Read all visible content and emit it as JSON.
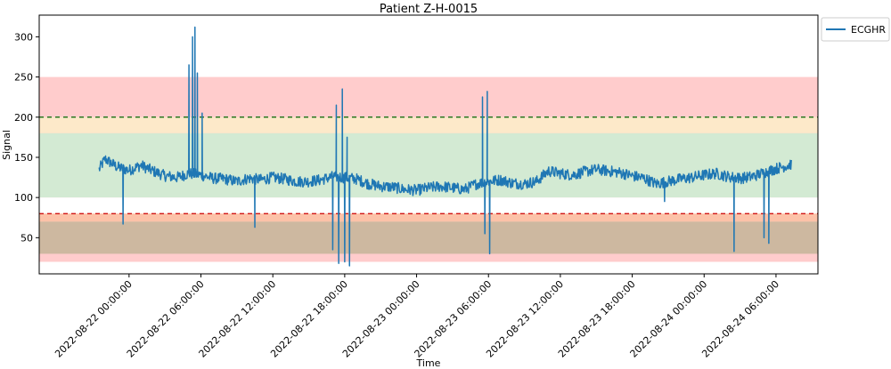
{
  "chart_data": {
    "type": "line",
    "title": "Patient Z-H-0015",
    "xlabel": "Time",
    "ylabel": "Signal",
    "xlim_hours": [
      -7.5,
      57.5
    ],
    "ylim": [
      5,
      327
    ],
    "yticks": [
      50,
      100,
      150,
      200,
      250,
      300
    ],
    "xticks": [
      {
        "h": 0,
        "label": "2022-08-22 00:00:00"
      },
      {
        "h": 6,
        "label": "2022-08-22 06:00:00"
      },
      {
        "h": 12,
        "label": "2022-08-22 12:00:00"
      },
      {
        "h": 18,
        "label": "2022-08-22 18:00:00"
      },
      {
        "h": 24,
        "label": "2022-08-23 00:00:00"
      },
      {
        "h": 30,
        "label": "2022-08-23 06:00:00"
      },
      {
        "h": 36,
        "label": "2022-08-23 12:00:00"
      },
      {
        "h": 42,
        "label": "2022-08-23 18:00:00"
      },
      {
        "h": 48,
        "label": "2022-08-24 00:00:00"
      },
      {
        "h": 54,
        "label": "2022-08-24 06:00:00"
      }
    ],
    "bands": [
      {
        "y0": 20,
        "y1": 250,
        "color": "#ffcccc",
        "opacity": 1.0
      },
      {
        "y0": 180,
        "y1": 200,
        "color": "#fde9c9",
        "opacity": 1.0
      },
      {
        "y0": 100,
        "y1": 180,
        "color": "#d3ead3",
        "opacity": 1.0
      },
      {
        "y0": 80,
        "y1": 100,
        "color": "#ffffff",
        "opacity": 1.0
      },
      {
        "y0": 70,
        "y1": 80,
        "color": "#fcc2a8",
        "opacity": 1.0
      },
      {
        "y0": 30,
        "y1": 70,
        "color": "#cdb8a0",
        "opacity": 1.0
      }
    ],
    "hlines": [
      {
        "y": 200,
        "color": "#006400",
        "dash": "5,4"
      },
      {
        "y": 80,
        "color": "#cc0000",
        "dash": "5,4"
      }
    ],
    "series": [
      {
        "name": "ECGHR",
        "color": "#1f77b4",
        "baseline": [
          [
            -2.5,
            135
          ],
          [
            -2.0,
            148
          ],
          [
            -1.0,
            138
          ],
          [
            0.0,
            134
          ],
          [
            1.0,
            140
          ],
          [
            2.0,
            133
          ],
          [
            3.0,
            127
          ],
          [
            4.0,
            125
          ],
          [
            5.0,
            130
          ],
          [
            6.0,
            128
          ],
          [
            7.0,
            124
          ],
          [
            8.0,
            123
          ],
          [
            9.0,
            120
          ],
          [
            10.0,
            124
          ],
          [
            11.0,
            122
          ],
          [
            12.0,
            125
          ],
          [
            13.0,
            123
          ],
          [
            14.0,
            120
          ],
          [
            15.0,
            120
          ],
          [
            16.0,
            122
          ],
          [
            17.0,
            126
          ],
          [
            18.0,
            125
          ],
          [
            19.0,
            123
          ],
          [
            20.0,
            117
          ],
          [
            21.0,
            114
          ],
          [
            22.0,
            113
          ],
          [
            23.0,
            110
          ],
          [
            24.0,
            109
          ],
          [
            25.0,
            112
          ],
          [
            26.0,
            114
          ],
          [
            27.0,
            112
          ],
          [
            28.0,
            110
          ],
          [
            29.0,
            117
          ],
          [
            30.0,
            120
          ],
          [
            31.0,
            122
          ],
          [
            32.0,
            118
          ],
          [
            33.0,
            117
          ],
          [
            34.0,
            120
          ],
          [
            35.0,
            133
          ],
          [
            36.0,
            130
          ],
          [
            37.0,
            128
          ],
          [
            38.0,
            132
          ],
          [
            39.0,
            135
          ],
          [
            40.0,
            133
          ],
          [
            41.0,
            131
          ],
          [
            42.0,
            127
          ],
          [
            43.0,
            124
          ],
          [
            44.0,
            117
          ],
          [
            45.0,
            120
          ],
          [
            46.0,
            123
          ],
          [
            47.0,
            125
          ],
          [
            48.0,
            128
          ],
          [
            49.0,
            130
          ],
          [
            50.0,
            126
          ],
          [
            51.0,
            124
          ],
          [
            52.0,
            126
          ],
          [
            53.0,
            131
          ],
          [
            54.0,
            136
          ],
          [
            55.0,
            140
          ],
          [
            55.3,
            142
          ]
        ],
        "spikes": [
          [
            -0.5,
            67
          ],
          [
            5.0,
            265
          ],
          [
            5.3,
            300
          ],
          [
            5.5,
            312
          ],
          [
            5.7,
            255
          ],
          [
            6.1,
            205
          ],
          [
            10.5,
            63
          ],
          [
            17.0,
            35
          ],
          [
            17.3,
            215
          ],
          [
            17.5,
            18
          ],
          [
            17.8,
            235
          ],
          [
            18.0,
            20
          ],
          [
            18.2,
            175
          ],
          [
            18.4,
            15
          ],
          [
            29.5,
            225
          ],
          [
            29.7,
            55
          ],
          [
            29.9,
            232
          ],
          [
            30.1,
            30
          ],
          [
            44.7,
            95
          ],
          [
            50.5,
            33
          ],
          [
            50.8,
            130
          ],
          [
            53.0,
            50
          ],
          [
            53.4,
            43
          ],
          [
            53.7,
            130
          ]
        ]
      }
    ],
    "legend": {
      "position": "top-right-outside",
      "entries": [
        "ECGHR"
      ]
    }
  }
}
